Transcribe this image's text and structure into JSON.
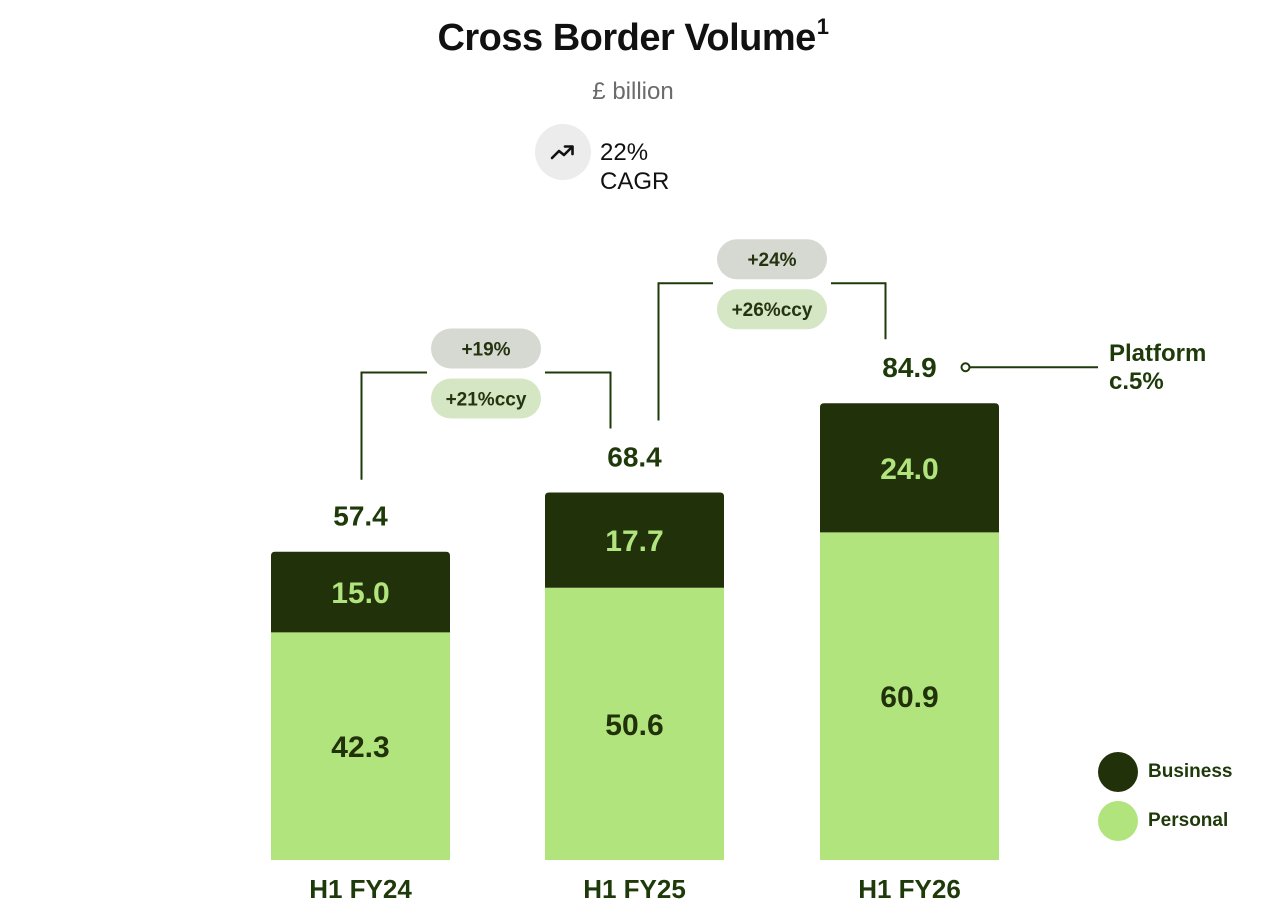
{
  "header": {
    "title": "Cross Border Volume",
    "title_footnote": "1",
    "unit": "£ billion"
  },
  "cagr": {
    "icon": "trend-up-icon",
    "value": "22%",
    "label": "CAGR"
  },
  "platform_note": {
    "line1": "Platform",
    "line2": "c.5%"
  },
  "growth": [
    {
      "from": "H1 FY24",
      "to": "H1 FY25",
      "reported": "+19%",
      "ccy": "+21%ccy"
    },
    {
      "from": "H1 FY25",
      "to": "H1 FY26",
      "reported": "+24%",
      "ccy": "+26%ccy"
    }
  ],
  "colors": {
    "business": "#21320b",
    "personal": "#b1e47d",
    "business_label": "#b1e47d",
    "personal_label": "#21320b",
    "pill_reported": "#d6d9d2",
    "pill_ccy": "#d4e6c4"
  },
  "chart_data": {
    "type": "bar",
    "stacked": true,
    "categories": [
      "H1 FY24",
      "H1 FY25",
      "H1 FY26"
    ],
    "series": [
      {
        "name": "Personal",
        "values": [
          42.3,
          50.6,
          60.9
        ]
      },
      {
        "name": "Business",
        "values": [
          15.0,
          17.7,
          24.0
        ]
      }
    ],
    "totals": [
      57.4,
      68.4,
      84.9
    ],
    "total_labels": [
      "57.4",
      "68.4",
      "84.9"
    ],
    "segment_labels": {
      "Personal": [
        "42.3",
        "50.6",
        "60.9"
      ],
      "Business": [
        "15.0",
        "17.7",
        "24.0"
      ]
    },
    "title": "Cross Border Volume",
    "ylabel": "£ billion",
    "ylim": [
      0,
      100
    ],
    "grid": false,
    "legend": {
      "placement": "bottom-right",
      "entries": [
        "Business",
        "Personal"
      ]
    }
  }
}
